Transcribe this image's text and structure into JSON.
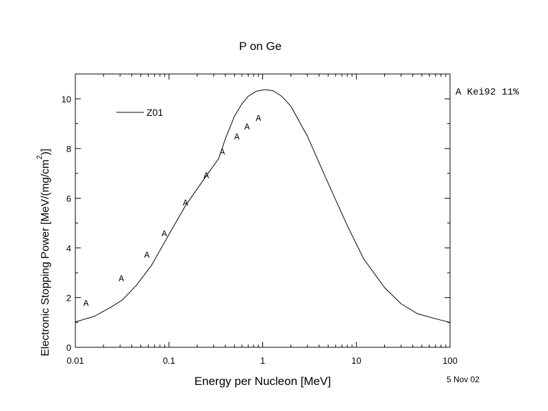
{
  "chart_data": {
    "type": "line",
    "title": "P on Ge",
    "xlabel": "Energy per Nucleon [MeV]",
    "ylabel_main": "Electronic Stopping Power [MeV/(mg/cm",
    "ylabel_sup": "2",
    "ylabel_end": ")]",
    "xscale": "log",
    "xlim": [
      0.01,
      100
    ],
    "ylim": [
      0,
      11
    ],
    "x_ticks": [
      0.01,
      0.1,
      1,
      10,
      100
    ],
    "x_tick_labels": [
      "0.01",
      "0.1",
      "1",
      "10",
      "100"
    ],
    "y_ticks": [
      0,
      2,
      4,
      6,
      8,
      10
    ],
    "y_tick_labels": [
      "0",
      "2",
      "4",
      "6",
      "8",
      "10"
    ],
    "legend_position": "top-left",
    "series": [
      {
        "name": "Z01",
        "style": "line",
        "x": [
          0.01,
          0.016,
          0.025,
          0.032,
          0.045,
          0.065,
          0.1,
          0.15,
          0.25,
          0.34,
          0.4,
          0.5,
          0.6,
          0.7,
          0.85,
          1.0,
          1.1,
          1.3,
          1.6,
          2.0,
          3.0,
          5.0,
          8.0,
          12.0,
          20.0,
          30.0,
          45.0,
          70.0,
          100.0
        ],
        "y": [
          1.02,
          1.25,
          1.65,
          1.92,
          2.5,
          3.3,
          4.55,
          5.7,
          6.9,
          7.6,
          8.4,
          9.3,
          9.8,
          10.1,
          10.3,
          10.36,
          10.37,
          10.32,
          10.1,
          9.7,
          8.5,
          6.6,
          4.9,
          3.55,
          2.4,
          1.75,
          1.35,
          1.15,
          1.0
        ]
      },
      {
        "name": "Kei92 11%",
        "style": "marker",
        "marker": "A",
        "x": [
          0.013,
          0.031,
          0.058,
          0.089,
          0.15,
          0.25,
          0.37,
          0.53,
          0.68,
          0.9
        ],
        "y": [
          1.8,
          2.8,
          3.75,
          4.6,
          5.85,
          6.95,
          7.9,
          8.5,
          8.9,
          9.25
        ]
      }
    ],
    "legend_label": "Z01",
    "marker_legend": "A Kei92 11%",
    "date_label": "5 Nov 02"
  }
}
